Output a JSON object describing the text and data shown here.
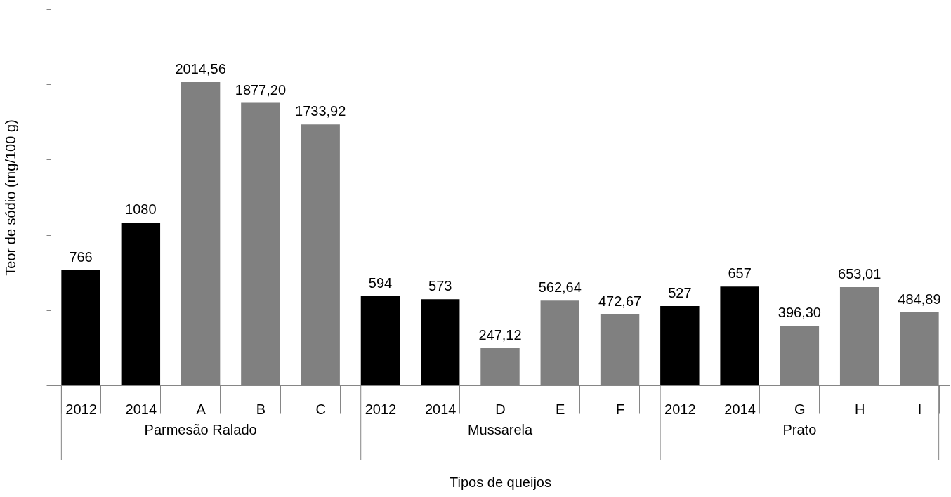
{
  "chart_data": {
    "type": "bar",
    "xlabel": "Tipos de queijos",
    "ylabel": "Teor de sódio (mg/100 g)",
    "categories": [
      "2012",
      "2014",
      "A",
      "B",
      "C",
      "2012",
      "2014",
      "D",
      "E",
      "F",
      "2012",
      "2014",
      "G",
      "H",
      "I"
    ],
    "values": [
      766,
      1080,
      2014.56,
      1877.2,
      1733.92,
      594,
      573,
      247.12,
      562.64,
      472.67,
      527,
      657,
      396.3,
      653.01,
      484.89
    ],
    "value_labels": [
      "766",
      "1080",
      "2014,56",
      "1877,20",
      "1733,92",
      "594",
      "573",
      "247,12",
      "562,64",
      "472,67",
      "527",
      "657",
      "396,30",
      "653,01",
      "484,89"
    ],
    "colors": [
      "#000000",
      "#000000",
      "#808080",
      "#808080",
      "#808080",
      "#000000",
      "#000000",
      "#808080",
      "#808080",
      "#808080",
      "#000000",
      "#000000",
      "#808080",
      "#808080",
      "#808080"
    ],
    "annotations": [
      "Parmesão  Ralado",
      "Mussarela",
      "Prato"
    ],
    "ylim": [
      0,
      2500
    ],
    "yticks": [
      {
        "value": 0,
        "label": null
      },
      {
        "value": 500,
        "label": null
      },
      {
        "value": 1000,
        "label": null
      },
      {
        "value": 1500,
        "label": null
      },
      {
        "value": 2000,
        "label": null
      },
      {
        "value": 2500,
        "label": null
      }
    ],
    "tick_labels": "x",
    "grid": false
  }
}
